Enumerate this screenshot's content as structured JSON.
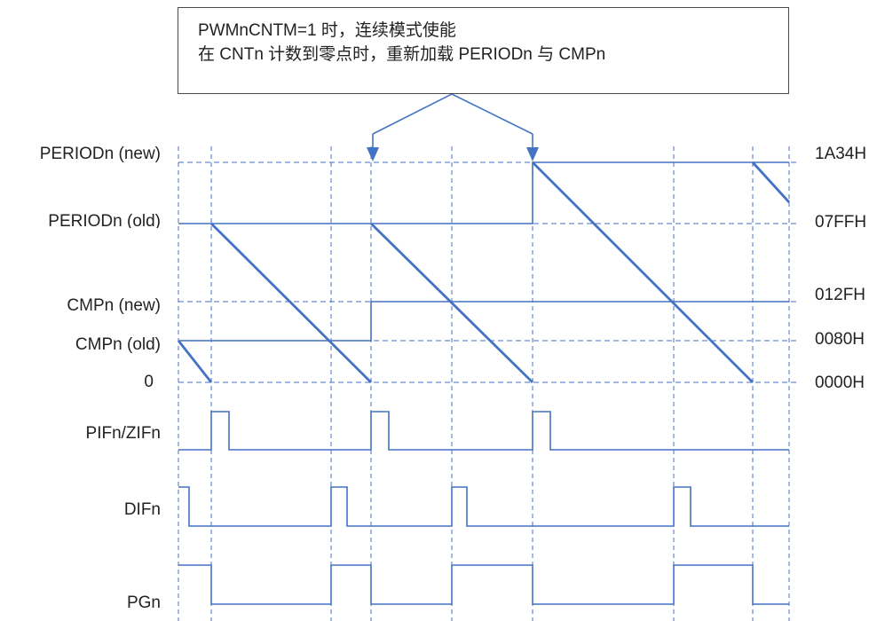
{
  "note": {
    "line1": "PWMnCNTM=1 时，连续模式使能",
    "line2": "在 CNTn 计数到零点时，重新加载 PERIODn 与 CMPn"
  },
  "levels": {
    "period_new": {
      "label": "PERIODn (new)",
      "value": "1A34H"
    },
    "period_old": {
      "label": "PERIODn (old)",
      "value": "07FFH"
    },
    "cmp_new": {
      "label": "CMPn (new)",
      "value": "012FH"
    },
    "cmp_old": {
      "label": "CMPn (old)",
      "value": "0080H"
    },
    "zero": {
      "label": "0",
      "value": "0000H"
    }
  },
  "signals": {
    "pif_zif": "PIFn/ZIFn",
    "dif": "DIFn",
    "pg": "PGn"
  },
  "colors": {
    "accent": "#4472c4",
    "frame": "#4a4a4a",
    "text": "#222222"
  }
}
